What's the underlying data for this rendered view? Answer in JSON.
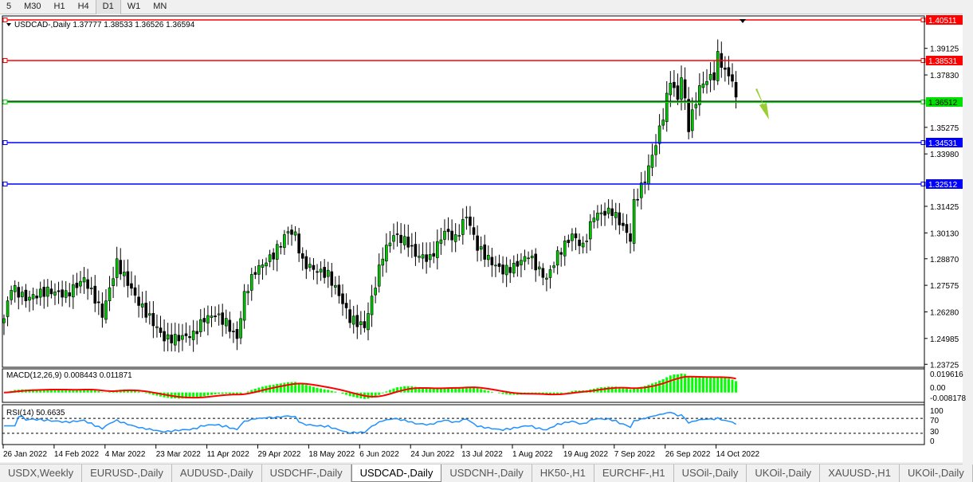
{
  "timeframes": [
    "5",
    "M30",
    "H1",
    "H4",
    "D1",
    "W1",
    "MN"
  ],
  "active_timeframe": "D1",
  "chart": {
    "header": "USDCAD-,Daily  1.37777 1.38533 1.36526 1.36594",
    "symbol": "USDCAD-,Daily",
    "ohlc": {
      "open": "1.37777",
      "high": "1.38533",
      "low": "1.36526",
      "close": "1.36594"
    },
    "price_ticks": [
      "1.39125",
      "1.37830",
      "1.35275",
      "1.33980",
      "1.31425",
      "1.30130",
      "1.28870",
      "1.27575",
      "1.26280",
      "1.24985",
      "1.23725"
    ],
    "ylim": [
      1.23725,
      1.40511
    ],
    "levels": [
      {
        "price": 1.40511,
        "label": "1.40511",
        "color": "#ff0000"
      },
      {
        "price": 1.38531,
        "label": "1.38531",
        "color": "#ff0000"
      },
      {
        "price": 1.36512,
        "label": "1.36512",
        "color": "#00e000"
      },
      {
        "price": 1.34531,
        "label": "1.34531",
        "color": "#0000ff"
      },
      {
        "price": 1.32512,
        "label": "1.32512",
        "color": "#0000ff"
      }
    ],
    "bull_color": "#00c800",
    "bear_color": "#000000",
    "arrow_color": "#9acd32",
    "date_labels": [
      "26 Jan 2022",
      "14 Feb 2022",
      "4 Mar 2022",
      "23 Mar 2022",
      "11 Apr 2022",
      "29 Apr 2022",
      "18 May 2022",
      "6 Jun 2022",
      "24 Jun 2022",
      "13 Jul 2022",
      "1 Aug 2022",
      "19 Aug 2022",
      "7 Sep 2022",
      "26 Sep 2022",
      "14 Oct 2022"
    ],
    "close_keypoints": [
      [
        0,
        1.2595
      ],
      [
        2,
        1.275
      ],
      [
        6,
        1.2692
      ],
      [
        12,
        1.2731
      ],
      [
        17,
        1.2711
      ],
      [
        22,
        1.2789
      ],
      [
        25,
        1.2692
      ],
      [
        27,
        1.2614
      ],
      [
        31,
        1.2867
      ],
      [
        34,
        1.277
      ],
      [
        37,
        1.2672
      ],
      [
        41,
        1.2575
      ],
      [
        44,
        1.2498
      ],
      [
        47,
        1.2498
      ],
      [
        52,
        1.2517
      ],
      [
        55,
        1.2595
      ],
      [
        58,
        1.2614
      ],
      [
        61,
        1.2575
      ],
      [
        64,
        1.2498
      ],
      [
        66,
        1.2711
      ],
      [
        69,
        1.2828
      ],
      [
        74,
        1.2906
      ],
      [
        78,
        1.3022
      ],
      [
        80,
        1.3003
      ],
      [
        82,
        1.2867
      ],
      [
        86,
        1.2828
      ],
      [
        89,
        1.2809
      ],
      [
        92,
        1.2711
      ],
      [
        95,
        1.2595
      ],
      [
        99,
        1.2556
      ],
      [
        101,
        1.2692
      ],
      [
        104,
        1.2906
      ],
      [
        107,
        1.3003
      ],
      [
        111,
        1.2964
      ],
      [
        113,
        1.2906
      ],
      [
        117,
        1.2886
      ],
      [
        121,
        1.3022
      ],
      [
        124,
        1.2983
      ],
      [
        127,
        1.31
      ],
      [
        130,
        1.2944
      ],
      [
        134,
        1.2867
      ],
      [
        137,
        1.2828
      ],
      [
        140,
        1.2847
      ],
      [
        144,
        1.2906
      ],
      [
        147,
        1.2828
      ],
      [
        149,
        1.2789
      ],
      [
        152,
        1.2906
      ],
      [
        156,
        1.3003
      ],
      [
        159,
        1.2944
      ],
      [
        162,
        1.31
      ],
      [
        167,
        1.3119
      ],
      [
        170,
        1.3041
      ],
      [
        172,
        1.2983
      ],
      [
        173,
        1.3158
      ],
      [
        176,
        1.3274
      ],
      [
        179,
        1.3449
      ],
      [
        181,
        1.3585
      ],
      [
        183,
        1.376
      ],
      [
        185,
        1.3663
      ],
      [
        186,
        1.3779
      ],
      [
        188,
        1.3527
      ],
      [
        191,
        1.3721
      ],
      [
        193,
        1.376
      ],
      [
        195,
        1.3779
      ],
      [
        196,
        1.3876
      ],
      [
        198,
        1.3799
      ],
      [
        200,
        1.376
      ],
      [
        201,
        1.3659
      ]
    ],
    "macd": {
      "label": "MACD(12,26,9) 0.008443 0.011871",
      "ticks": [
        "0.019616",
        "0.00",
        "-0.008178"
      ],
      "range": [
        -0.008178,
        0.019616
      ],
      "hist_color": "#00ff00",
      "signal_color": "#ff0000"
    },
    "rsi": {
      "label": "RSI(14) 50.6635",
      "ticks": [
        "100",
        "70",
        "30",
        "0"
      ],
      "levels": [
        70,
        30
      ],
      "color": "#1e90ff"
    }
  },
  "tabs": [
    "USDX,Weekly",
    "EURUSD-,Daily",
    "AUDUSD-,Daily",
    "USDCHF-,Daily",
    "USDCAD-,Daily",
    "USDCNH-,Daily",
    "HK50-,H1",
    "EURCHF-,H1",
    "USOil-,Daily",
    "UKOil-,Daily",
    "XAUUSD-,H1",
    "UKOil-,Daily"
  ],
  "active_tab": "USDCAD-,Daily"
}
